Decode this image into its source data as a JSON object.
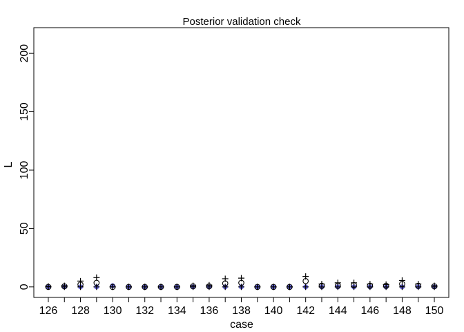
{
  "chart_data": {
    "type": "scatter",
    "title": "Posterior validation check",
    "xlabel": "case",
    "ylabel": "L",
    "xlim": [
      125.1,
      150.9
    ],
    "ylim": [
      -9,
      222
    ],
    "xticks": [
      126,
      127,
      128,
      129,
      130,
      131,
      132,
      133,
      134,
      135,
      136,
      137,
      138,
      139,
      140,
      141,
      142,
      143,
      144,
      145,
      146,
      147,
      148,
      149,
      150
    ],
    "xtick_labels": [
      "126",
      "",
      "128",
      "",
      "130",
      "",
      "132",
      "",
      "134",
      "",
      "136",
      "",
      "138",
      "",
      "140",
      "",
      "142",
      "",
      "144",
      "",
      "146",
      "",
      "148",
      "",
      "150"
    ],
    "yticks": [
      0,
      50,
      100,
      150,
      200
    ],
    "ytick_labels": [
      "0",
      "50",
      "100",
      "150",
      "200"
    ],
    "colors": {
      "observed": "#6b6bdf",
      "mean": "#000000",
      "interval": "#000000"
    },
    "series": [
      {
        "marker": "filled-circle",
        "x": [
          126,
          127,
          128,
          129,
          130,
          131,
          132,
          133,
          134,
          135,
          136,
          137,
          138,
          139,
          140,
          141,
          142,
          143,
          144,
          145,
          146,
          147,
          148,
          149,
          150
        ],
        "values": [
          0,
          0,
          0,
          0,
          1,
          0,
          0,
          0,
          0,
          0,
          0,
          0,
          0,
          0,
          0,
          0,
          0,
          0,
          0,
          0,
          0,
          0,
          0,
          0,
          0
        ]
      },
      {
        "marker": "open-circle",
        "x": [
          126,
          127,
          128,
          129,
          130,
          131,
          132,
          133,
          134,
          135,
          136,
          137,
          138,
          139,
          140,
          141,
          142,
          143,
          144,
          145,
          146,
          147,
          148,
          149,
          150
        ],
        "values": [
          0,
          0.5,
          2,
          3.5,
          0,
          0,
          0,
          0,
          0,
          0.5,
          0.5,
          3,
          3.5,
          0,
          0,
          0,
          5,
          1,
          1,
          1.5,
          1,
          1,
          2.5,
          1,
          0.5
        ]
      },
      {
        "marker": "plus",
        "x": [
          126,
          127,
          128,
          129,
          130,
          131,
          132,
          133,
          134,
          135,
          136,
          137,
          138,
          139,
          140,
          141,
          142,
          143,
          144,
          145,
          146,
          147,
          148,
          149,
          150
        ],
        "upper": [
          0.5,
          1,
          5,
          8,
          0,
          0,
          0,
          0,
          0,
          1,
          1.5,
          7,
          7.5,
          0,
          0,
          0,
          9,
          2.5,
          3.5,
          3.5,
          2.5,
          2,
          5.5,
          2.5,
          1
        ],
        "lower": [
          0,
          0,
          0,
          0,
          0,
          0,
          0,
          0,
          0,
          0,
          0,
          0,
          0,
          0,
          0,
          0,
          0,
          0,
          0,
          0,
          0,
          0,
          0,
          0,
          0
        ]
      }
    ]
  }
}
